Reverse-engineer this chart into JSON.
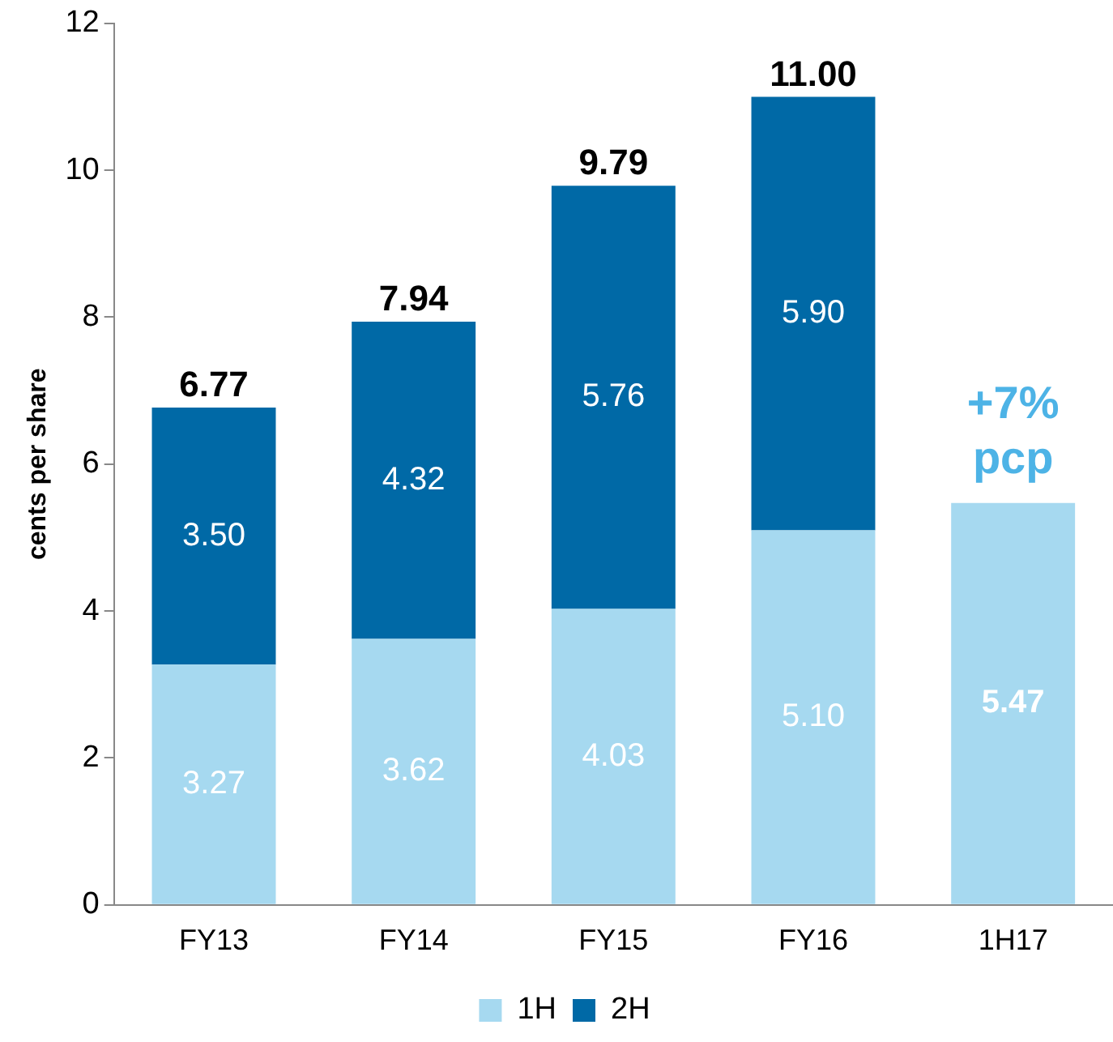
{
  "chart_data": {
    "type": "bar",
    "stacked": true,
    "ylabel": "cents per share",
    "categories": [
      "FY13",
      "FY14",
      "FY15",
      "FY16",
      "1H17"
    ],
    "series": [
      {
        "name": "1H",
        "color": "#a6d9f0",
        "values": [
          3.27,
          3.62,
          4.03,
          5.1,
          5.47
        ],
        "value_labels": [
          "3.27",
          "3.62",
          "4.03",
          "5.10",
          "5.47"
        ]
      },
      {
        "name": "2H",
        "color": "#0069a6",
        "values": [
          3.5,
          4.32,
          5.76,
          5.9,
          null
        ],
        "value_labels": [
          "3.50",
          "4.32",
          "5.76",
          "5.90",
          null
        ]
      }
    ],
    "ylim": [
      0,
      12
    ],
    "yticks": [
      0,
      2,
      4,
      6,
      8,
      10,
      12
    ],
    "grid": false,
    "legend": "bottom",
    "totals": [
      "6.77",
      "7.94",
      "9.79",
      "11.00",
      null
    ],
    "annotations": [
      {
        "text": "+7% pcp",
        "x": "1H17",
        "y": 5.47
      }
    ]
  }
}
